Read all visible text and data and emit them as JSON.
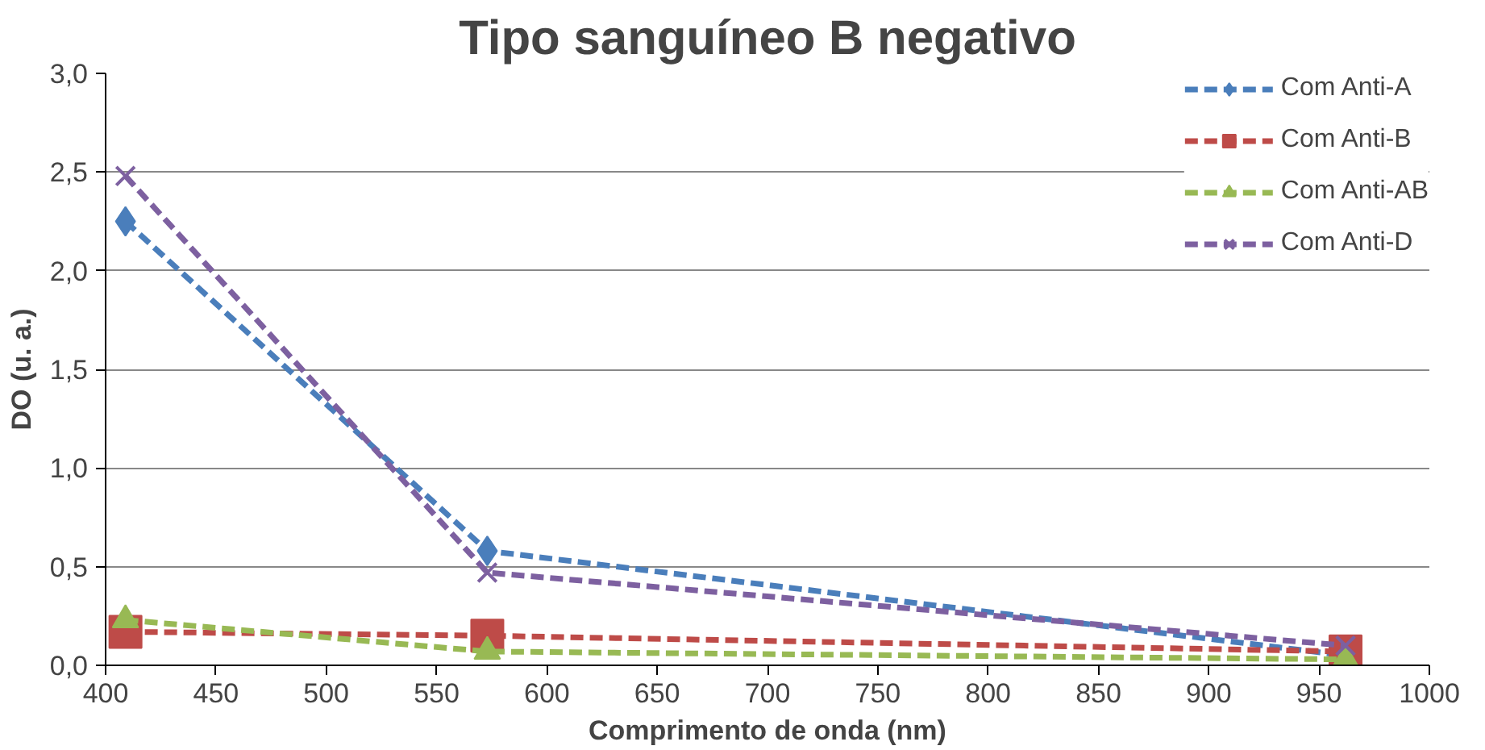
{
  "chart_data": {
    "type": "line",
    "title": "Tipo sanguíneo B negativo",
    "xlabel": "Comprimento de onda (nm)",
    "ylabel": "DO (u. a.)",
    "x": [
      409,
      573,
      962
    ],
    "series": [
      {
        "name": "Com Anti-A",
        "color": "#4a7ebb",
        "marker": "diamond",
        "values": [
          2.25,
          0.58,
          0.05
        ]
      },
      {
        "name": "Com Anti-B",
        "color": "#be4b48",
        "marker": "square",
        "values": [
          0.17,
          0.15,
          0.07
        ]
      },
      {
        "name": "Com Anti-AB",
        "color": "#98b954",
        "marker": "triangle",
        "values": [
          0.23,
          0.07,
          0.03
        ]
      },
      {
        "name": "Com Anti-D",
        "color": "#7d60a0",
        "marker": "cross",
        "values": [
          2.48,
          0.47,
          0.1
        ]
      }
    ],
    "xlim": [
      400,
      1000
    ],
    "xticks": [
      400,
      450,
      500,
      550,
      600,
      650,
      700,
      750,
      800,
      850,
      900,
      950,
      1000
    ],
    "ylim": [
      0,
      3
    ],
    "yticks": [
      {
        "value": 0,
        "label": "0,0"
      },
      {
        "value": 0.5,
        "label": "0,5"
      },
      {
        "value": 1,
        "label": "1,0"
      },
      {
        "value": 1.5,
        "label": "1,5"
      },
      {
        "value": 2,
        "label": "2,0"
      },
      {
        "value": 2.5,
        "label": "2,5"
      },
      {
        "value": 3,
        "label": "3,0"
      }
    ],
    "grid": "y",
    "legend": "top right",
    "line_style": "dashed"
  }
}
